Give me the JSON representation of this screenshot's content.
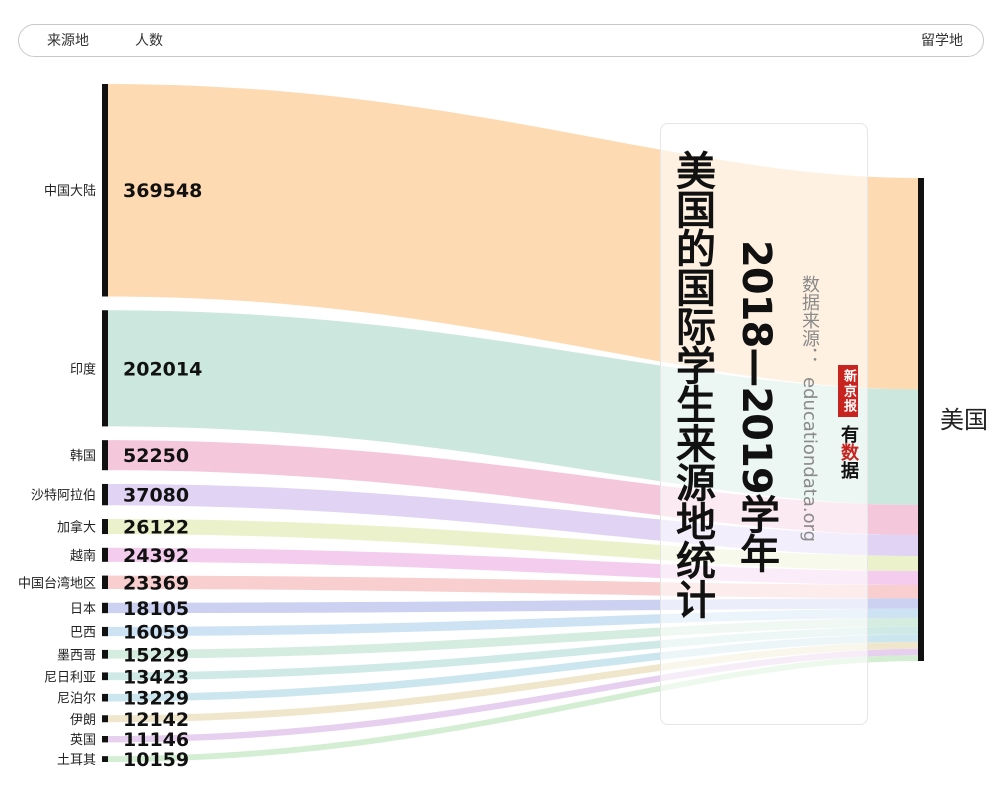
{
  "header": {
    "col_source": "来源地",
    "col_count": "人数",
    "col_target": "留学地"
  },
  "title": {
    "main": "美国的国际学生来源地统计",
    "subtitle": "2018—2019学年",
    "source_label": "数据来源：",
    "source_url": "educationdata.org",
    "logo_seal": "新京报",
    "logo_text_a": "有",
    "logo_text_b": "数",
    "logo_text_c": "据"
  },
  "chart_data": {
    "type": "sankey",
    "title": "美国的国际学生来源地统计",
    "subtitle": "2018—2019学年",
    "target": "美国",
    "sources": [
      {
        "name": "中国大陆",
        "value": 369548,
        "color": "#fdd5a6"
      },
      {
        "name": "印度",
        "value": 202014,
        "color": "#c5e4d8"
      },
      {
        "name": "韩国",
        "value": 52250,
        "color": "#f4bfd6"
      },
      {
        "name": "沙特阿拉伯",
        "value": 37080,
        "color": "#dccdf3"
      },
      {
        "name": "加拿大",
        "value": 26122,
        "color": "#e8f0c4"
      },
      {
        "name": "越南",
        "value": 24392,
        "color": "#f1c5ec"
      },
      {
        "name": "中国台湾地区",
        "value": 23369,
        "color": "#f7c7c7"
      },
      {
        "name": "日本",
        "value": 18105,
        "color": "#c5caef"
      },
      {
        "name": "巴西",
        "value": 16059,
        "color": "#c6dff2"
      },
      {
        "name": "墨西哥",
        "value": 15229,
        "color": "#cfe9dc"
      },
      {
        "name": "尼日利亚",
        "value": 13423,
        "color": "#c8e7e2"
      },
      {
        "name": "尼泊尔",
        "value": 13229,
        "color": "#c5e2ee"
      },
      {
        "name": "伊朗",
        "value": 12142,
        "color": "#ede2c4"
      },
      {
        "name": "英国",
        "value": 11146,
        "color": "#e4c8ee"
      },
      {
        "name": "土耳其",
        "value": 10159,
        "color": "#cdeccd"
      }
    ]
  }
}
